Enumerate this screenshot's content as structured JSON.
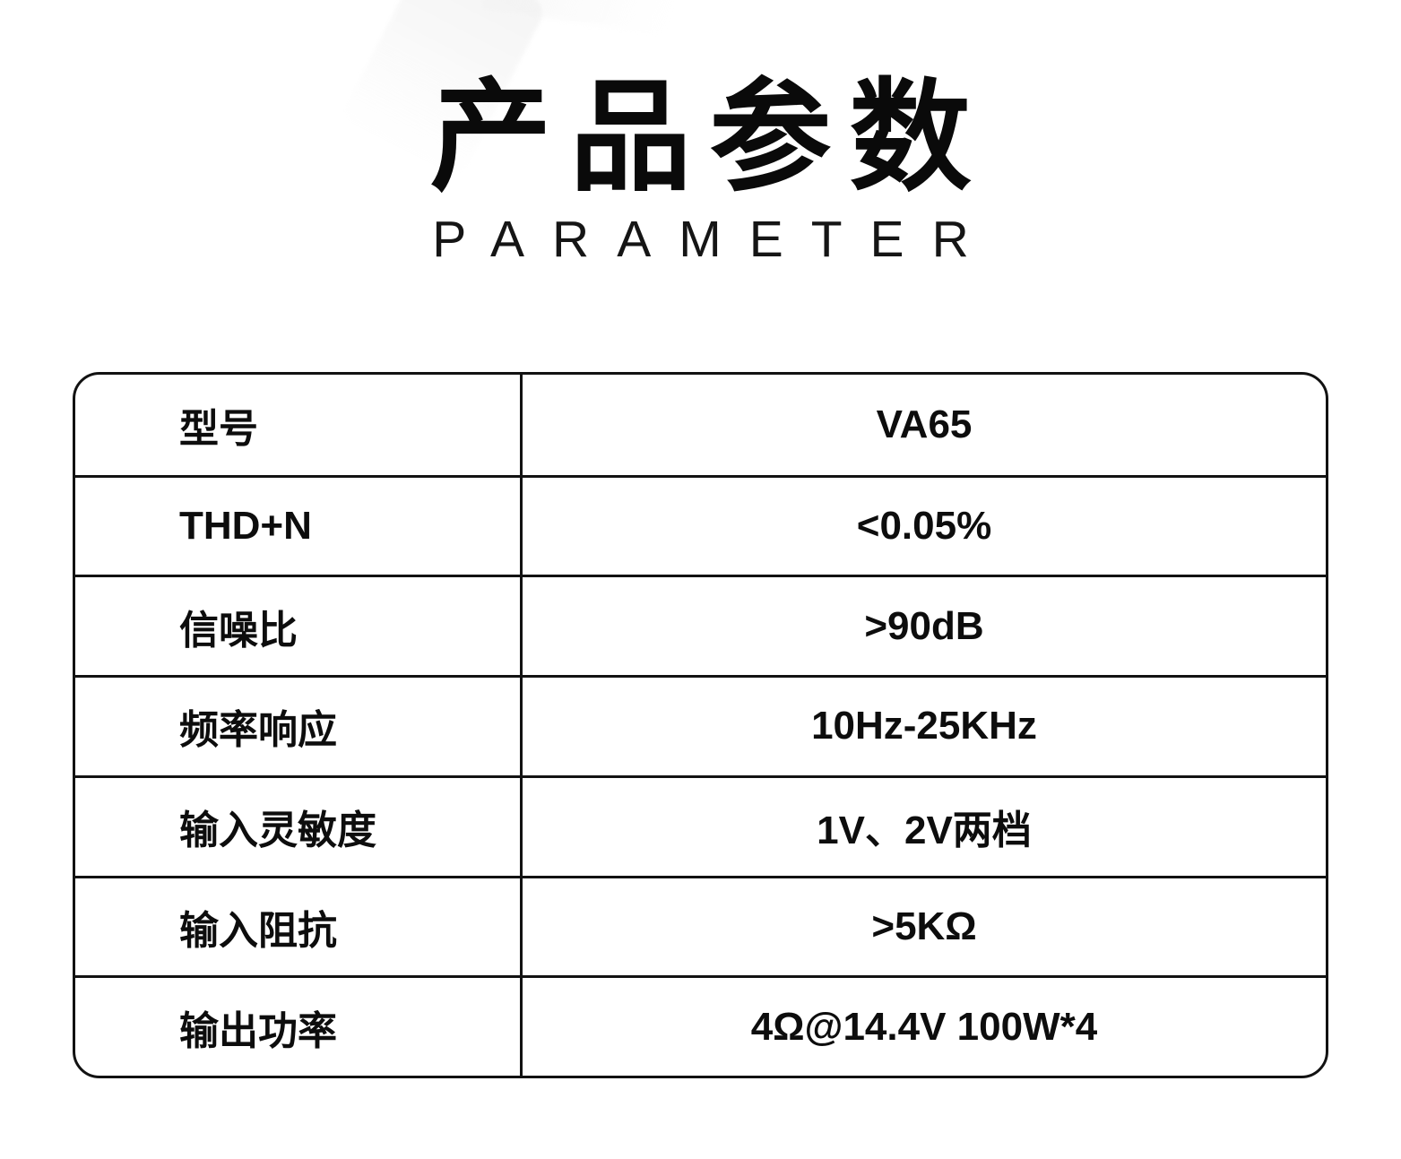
{
  "page": {
    "background_color": "#ffffff",
    "text_color": "#0d0d0d",
    "border_color": "#121212"
  },
  "header": {
    "title": "产品参数",
    "subtitle": "PARAMETER"
  },
  "spec_table": {
    "rows": [
      {
        "label": "型号",
        "value": "VA65"
      },
      {
        "label": "THD+N",
        "value": "<0.05%"
      },
      {
        "label": "信噪比",
        "value": ">90dB"
      },
      {
        "label": "频率响应",
        "value": "10Hz-25KHz"
      },
      {
        "label": "输入灵敏度",
        "value": "1V、2V两档"
      },
      {
        "label": "输入阻抗",
        "value": ">5KΩ"
      },
      {
        "label": "输出功率",
        "value": "4Ω@14.4V 100W*4"
      }
    ]
  }
}
